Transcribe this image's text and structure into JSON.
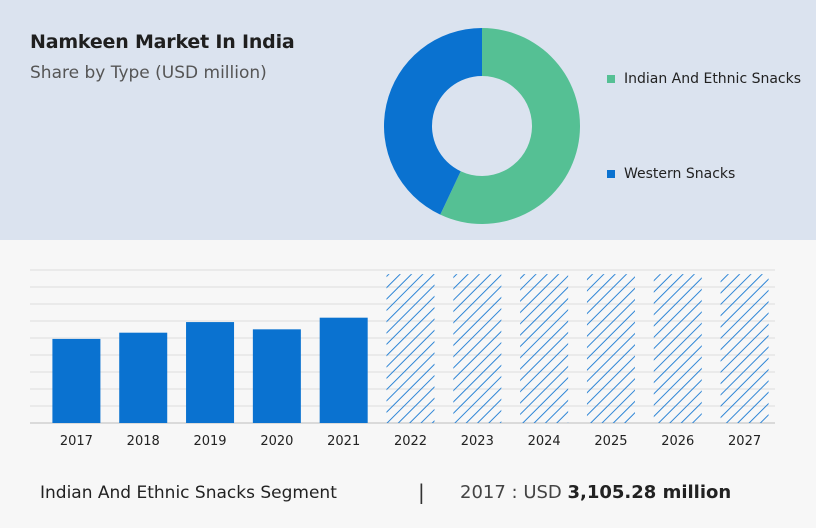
{
  "header": {
    "title": "Namkeen Market In India",
    "subtitle": "Share by Type (USD million)"
  },
  "colors": {
    "indian": "#55c094",
    "western": "#0a72d0",
    "bar": "#0a72d0",
    "forecast_hatch": "#2f86d6"
  },
  "chart_data": [
    {
      "type": "pie",
      "donut": true,
      "labels": [
        "Indian And Ethnic Snacks",
        "Western Snacks"
      ],
      "values": [
        57,
        43
      ],
      "legend": "right"
    },
    {
      "type": "bar",
      "categories": [
        "2017",
        "2018",
        "2019",
        "2020",
        "2021",
        "2022",
        "2023",
        "2024",
        "2025",
        "2026",
        "2027"
      ],
      "values": [
        3105.28,
        3335,
        3727,
        3459,
        3889,
        null,
        null,
        null,
        null,
        null,
        null
      ],
      "forecast": [
        false,
        false,
        false,
        false,
        false,
        true,
        true,
        true,
        true,
        true,
        true
      ],
      "ylim": [
        0,
        5650
      ],
      "grid": true
    }
  ],
  "footer": {
    "segment_label": "Indian And Ethnic Snacks Segment",
    "separator": "|",
    "year_prefix": "2017 : USD ",
    "value": "3,105.28 million"
  }
}
